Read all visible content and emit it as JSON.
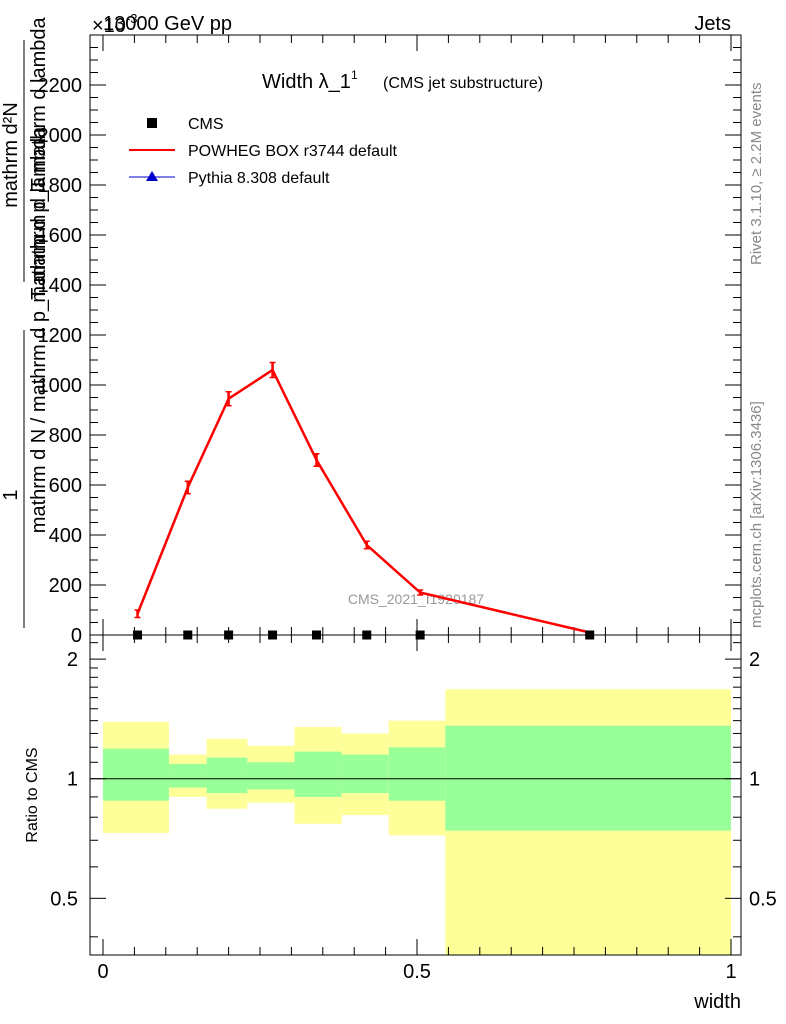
{
  "header": {
    "beam": "13000 GeV pp",
    "category": "Jets",
    "exponent": "×10",
    "exponent_power": "-3"
  },
  "side_labels": {
    "rivet": "Rivet 3.1.10, ≥ 2.2M events",
    "site": "mcplots.cern.ch [arXiv:1306.3436]"
  },
  "watermark": "CMS_2021_I1920187",
  "chart_data": [
    {
      "type": "line",
      "title": "Width λ_1",
      "title_sup": "1",
      "subtitle": "(CMS jet substructure)",
      "ylabel": "1 / mathrm d N / mathrm d p_T mathrm d²N / mathrm d p_T mathrm d lambda",
      "ylim": [
        0,
        2400
      ],
      "yticks": [
        0,
        200,
        400,
        600,
        800,
        1000,
        1200,
        1400,
        1600,
        1800,
        2000,
        2200
      ],
      "yticklabels": [
        "0",
        "200",
        "400",
        "600",
        "800",
        "1000",
        "1200",
        "1400",
        "1600",
        "1800",
        "2000",
        "2200"
      ],
      "xlim": [
        0,
        1
      ],
      "legend_position": "top-left",
      "series": [
        {
          "name": "CMS",
          "marker": "square",
          "color": "#000000",
          "x": [
            0.055,
            0.135,
            0.2,
            0.27,
            0.34,
            0.42,
            0.505,
            0.775
          ],
          "values": [
            0,
            0,
            0,
            0,
            0,
            0,
            0,
            0
          ]
        },
        {
          "name": "POWHEG BOX r3744 default",
          "marker": "line",
          "color": "#ff0000",
          "x": [
            0.055,
            0.135,
            0.2,
            0.27,
            0.34,
            0.42,
            0.505,
            0.775
          ],
          "values": [
            85,
            590,
            945,
            1060,
            700,
            360,
            170,
            10
          ],
          "errors": [
            15,
            25,
            28,
            30,
            25,
            15,
            10,
            5
          ]
        },
        {
          "name": "Pythia 8.308 default",
          "marker": "triangle",
          "color": "#0000cc",
          "x": [],
          "values": []
        }
      ]
    },
    {
      "type": "area",
      "title": "",
      "ylabel": "Ratio to CMS",
      "xlabel": "width",
      "xlim": [
        0,
        1
      ],
      "ylim": [
        0.36,
        2.3
      ],
      "log_y": true,
      "yticklabels_major": [
        "0.5",
        "1",
        "2"
      ],
      "yticks_major": [
        0.5,
        1,
        2
      ],
      "xticks": [
        0,
        0.5,
        1
      ],
      "xticklabels": [
        "0",
        "0.5",
        "1"
      ],
      "reference_line": 1,
      "bins": [
        {
          "lo": 0.0,
          "hi": 0.105,
          "yellow": [
            0.73,
            1.39
          ],
          "green": [
            0.88,
            1.19
          ]
        },
        {
          "lo": 0.105,
          "hi": 0.165,
          "yellow": [
            0.9,
            1.15
          ],
          "green": [
            0.95,
            1.09
          ]
        },
        {
          "lo": 0.165,
          "hi": 0.23,
          "yellow": [
            0.84,
            1.26
          ],
          "green": [
            0.92,
            1.13
          ]
        },
        {
          "lo": 0.23,
          "hi": 0.305,
          "yellow": [
            0.87,
            1.21
          ],
          "green": [
            0.94,
            1.1
          ]
        },
        {
          "lo": 0.305,
          "hi": 0.38,
          "yellow": [
            0.77,
            1.35
          ],
          "green": [
            0.9,
            1.17
          ]
        },
        {
          "lo": 0.38,
          "hi": 0.455,
          "yellow": [
            0.81,
            1.3
          ],
          "green": [
            0.92,
            1.15
          ]
        },
        {
          "lo": 0.455,
          "hi": 0.545,
          "yellow": [
            0.72,
            1.4
          ],
          "green": [
            0.88,
            1.2
          ]
        },
        {
          "lo": 0.545,
          "hi": 1.0,
          "yellow": [
            0.36,
            1.68
          ],
          "green": [
            0.74,
            1.36
          ]
        }
      ],
      "band_colors": {
        "yellow": "#ffff99",
        "green": "#99ff99"
      }
    }
  ]
}
